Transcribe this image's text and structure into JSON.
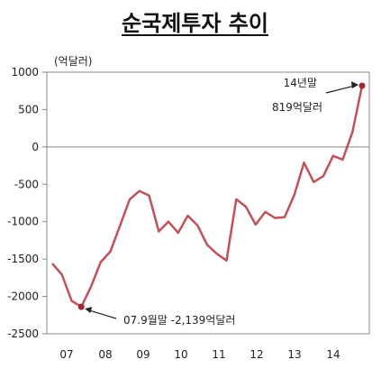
{
  "chart_data": {
    "type": "line",
    "title": "순국제투자 추이",
    "ylabel": "(억달러)",
    "xlabel": "",
    "ylim": [
      -2500,
      1000
    ],
    "yticks": [
      1000,
      500,
      0,
      -500,
      -1000,
      -1500,
      -2000,
      -2500
    ],
    "x_ticks": [
      "07",
      "08",
      "09",
      "10",
      "11",
      "12",
      "13",
      "14"
    ],
    "grid": false,
    "zero_line": true,
    "line_color": "#c0505a",
    "marker_color": "#a0282e",
    "series": [
      {
        "x": [
          "06.12",
          "07.3",
          "07.6",
          "07.9",
          "07.12",
          "08.3",
          "08.6",
          "08.9",
          "08.12",
          "09.3",
          "09.6",
          "09.9",
          "09.12",
          "10.3",
          "10.6",
          "10.9",
          "10.12",
          "11.3",
          "11.6",
          "11.9",
          "11.12",
          "12.3",
          "12.6",
          "12.9",
          "12.12",
          "13.3",
          "13.6",
          "13.9",
          "13.12",
          "14.3",
          "14.6",
          "14.9",
          "14.12"
        ],
        "values": [
          -1560,
          -1710,
          -2060,
          -2139,
          -1870,
          -1540,
          -1400,
          -1050,
          -700,
          -590,
          -650,
          -1130,
          -1000,
          -1150,
          -920,
          -1050,
          -1310,
          -1430,
          -1520,
          -700,
          -800,
          -1040,
          -870,
          -950,
          -940,
          -640,
          -210,
          -470,
          -390,
          -120,
          -170,
          200,
          819
        ]
      }
    ],
    "annotations": [
      {
        "point": "07.9",
        "value": -2139,
        "text": "07.9월말  -2,139억달러"
      },
      {
        "point": "14.12",
        "value": 819,
        "line1": "14년말",
        "line2": "819억달러"
      }
    ]
  }
}
